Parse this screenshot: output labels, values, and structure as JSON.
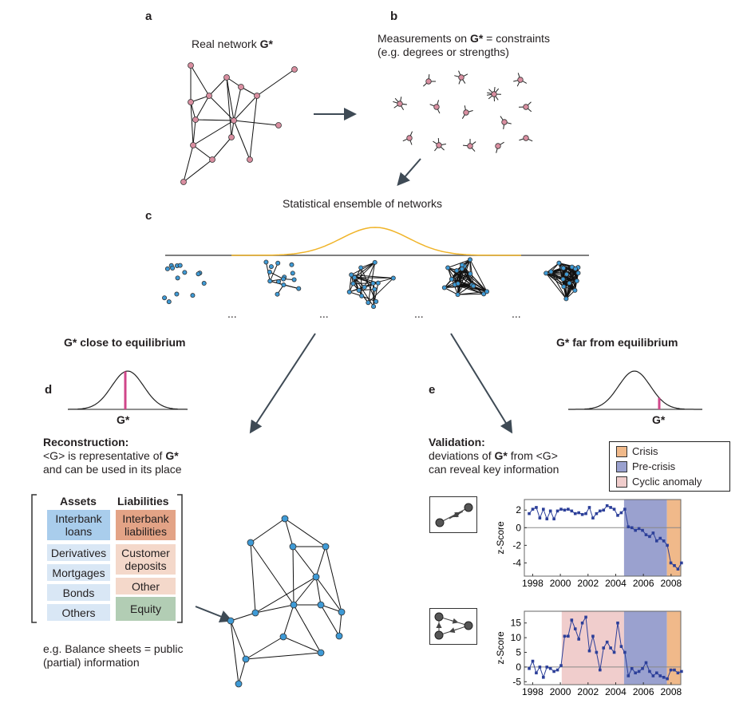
{
  "panels": {
    "a": "a",
    "b": "b",
    "c": "c",
    "d": "d",
    "e": "e"
  },
  "a": {
    "title": "Real network ",
    "title_bold": "G*"
  },
  "b": {
    "line1_pre": "Measurements on ",
    "line1_bold": "G*",
    "line1_post": " = constraints",
    "line2": "(e.g. degrees or strengths)"
  },
  "c": {
    "title": "Statistical ensemble of networks",
    "ellipsis": "..."
  },
  "d": {
    "heading": "G* close to equilibrium",
    "gauss_label": "G*",
    "recon_title": "Reconstruction:",
    "recon_l2_pre": "<G> is representative of ",
    "recon_l2_bold": "G*",
    "recon_l3": "and can be used in its place",
    "assets_header": "Assets",
    "liabilities_header": "Liabilities",
    "assets": [
      "Interbank loans",
      "Derivatives",
      "Mortgages",
      "Bonds",
      "Others"
    ],
    "liabilities": [
      "Interbank liabilities",
      "Customer deposits",
      "Other",
      "Equity"
    ],
    "note_l1": "e.g. Balance sheets = public",
    "note_l2": "(partial) information"
  },
  "e": {
    "heading": "G* far from equilibrium",
    "gauss_label": "G*",
    "valid_title": "Validation:",
    "valid_l2_pre": "deviations of ",
    "valid_l2_bold": "G*",
    "valid_l2_post": " from <G>",
    "valid_l3": "can reveal key information"
  },
  "legend": [
    {
      "label": "Crisis",
      "color": "#f0b98a"
    },
    {
      "label": "Pre-crisis",
      "color": "#9aa1cf"
    },
    {
      "label": "Cyclic anomaly",
      "color": "#f0cdcc"
    }
  ],
  "colors": {
    "node_pink": "#d98ea0",
    "node_blue": "#3e9ad6",
    "gauss_yellow": "#f0b429",
    "marker_pink": "#d0468a",
    "line_blue": "#2c3f99"
  },
  "chart_data": [
    {
      "type": "line",
      "ylabel": "z-Score",
      "xticks": [
        1998,
        2000,
        2002,
        2004,
        2006,
        2008
      ],
      "yticks": [
        -4,
        -2,
        0,
        2
      ],
      "xlim": [
        1997.4,
        2008.7
      ],
      "ylim": [
        -5.5,
        3.2
      ],
      "x_start": 1997.75,
      "x_end": 2008.75,
      "values": [
        1.6,
        2.1,
        2.3,
        1.1,
        2.1,
        1.0,
        1.9,
        1.0,
        1.9,
        2.1,
        2.0,
        2.1,
        1.9,
        1.6,
        1.7,
        1.5,
        1.6,
        2.3,
        1.1,
        1.6,
        1.9,
        2.0,
        2.5,
        2.3,
        2.1,
        1.4,
        1.7,
        2.1,
        0.1,
        0.0,
        -0.3,
        -0.1,
        -0.3,
        -0.8,
        -1.0,
        -0.6,
        -1.5,
        -1.2,
        -1.5,
        -2.0,
        -4.0,
        -4.3,
        -4.7,
        -4.0
      ],
      "bands": [
        {
          "name": "Pre-crisis",
          "from": 2004.6,
          "to": 2007.7
        },
        {
          "name": "Crisis",
          "from": 2007.7,
          "to": 2008.7
        }
      ],
      "motif": "reciprocated dyad"
    },
    {
      "type": "line",
      "ylabel": "z-Score",
      "xticks": [
        1998,
        2000,
        2002,
        2004,
        2006,
        2008
      ],
      "yticks": [
        -5,
        0,
        5,
        10,
        15
      ],
      "xlim": [
        1997.4,
        2008.7
      ],
      "ylim": [
        -6,
        19
      ],
      "x_start": 1997.75,
      "x_end": 2008.75,
      "values": [
        -0.5,
        2,
        -2,
        0,
        -3.5,
        0,
        -0.5,
        -1.5,
        -1,
        0.5,
        10.5,
        10.5,
        16,
        13,
        9.5,
        15,
        17,
        5.5,
        10.5,
        5,
        -1,
        6.5,
        8.5,
        6.5,
        5,
        15,
        7,
        5,
        -3,
        -0.5,
        -2,
        -1.5,
        -0.5,
        1.5,
        -1.5,
        -3,
        -2,
        -3,
        -3.5,
        -4,
        -1,
        -1,
        -2,
        -1.5
      ],
      "bands": [
        {
          "name": "Cyclic anomaly",
          "from": 2000.1,
          "to": 2004.6
        },
        {
          "name": "Pre-crisis",
          "from": 2004.6,
          "to": 2007.7
        },
        {
          "name": "Crisis",
          "from": 2007.7,
          "to": 2008.7
        }
      ],
      "motif": "cyclic triad"
    }
  ]
}
